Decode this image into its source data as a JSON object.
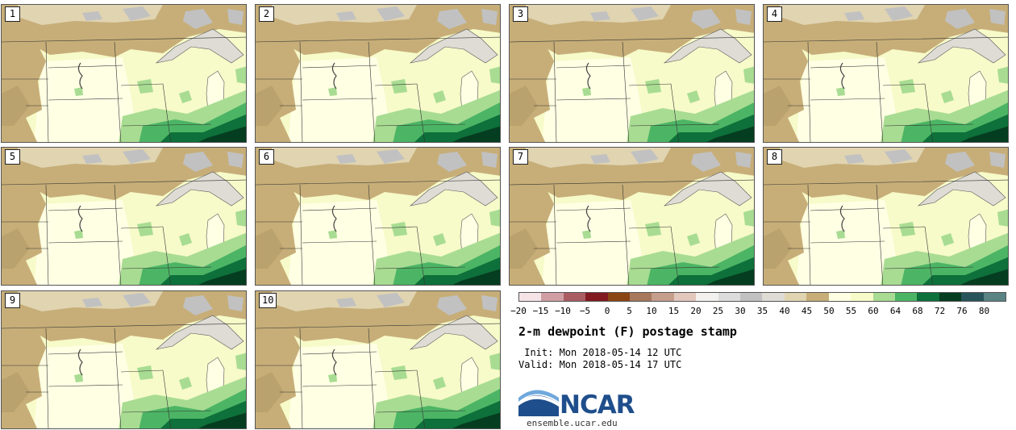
{
  "panels": [
    {
      "label": "1"
    },
    {
      "label": "2"
    },
    {
      "label": "3"
    },
    {
      "label": "4"
    },
    {
      "label": "5"
    },
    {
      "label": "6"
    },
    {
      "label": "7"
    },
    {
      "label": "8"
    },
    {
      "label": "9"
    },
    {
      "label": "10"
    }
  ],
  "colorbar": {
    "colors": [
      "#f4e3e7",
      "#cf9fa4",
      "#aa5c63",
      "#821a22",
      "#8a4514",
      "#a7785c",
      "#c69e8c",
      "#e2c7bc",
      "#f3f1ef",
      "#dddcdc",
      "#c1c1c1",
      "#dedcd5",
      "#e0d4b1",
      "#c7ae78",
      "#ffffe4",
      "#f7fac9",
      "#a8dc92",
      "#4cb565",
      "#0e703a",
      "#053d20",
      "#27555b",
      "#5a8383"
    ],
    "tick_labels": [
      "−20",
      "−15",
      "−10",
      "−5",
      "0",
      "5",
      "10",
      "15",
      "20",
      "25",
      "30",
      "35",
      "40",
      "45",
      "50",
      "55",
      "60",
      "64",
      "68",
      "72",
      "76",
      "80"
    ]
  },
  "title": "2-m dewpoint (F) postage stamp",
  "init_line": " Init: Mon 2018-05-14 12 UTC",
  "valid_line": "Valid: Mon 2018-05-14 17 UTC",
  "logo": {
    "text": "NCAR",
    "url": "ensemble.ucar.edu"
  },
  "colors": {
    "tan": "#c7ae78",
    "lighttan": "#e0d4b1",
    "gray": "#c1c1c1",
    "lightgray": "#dedcd5",
    "cream": "#ffffe4",
    "yellow": "#f7fac9",
    "lightgreen": "#a8dc92",
    "green": "#4cb565",
    "darkgreen": "#0e703a",
    "darkestgreen": "#053d20",
    "water": "#dedcd5"
  }
}
